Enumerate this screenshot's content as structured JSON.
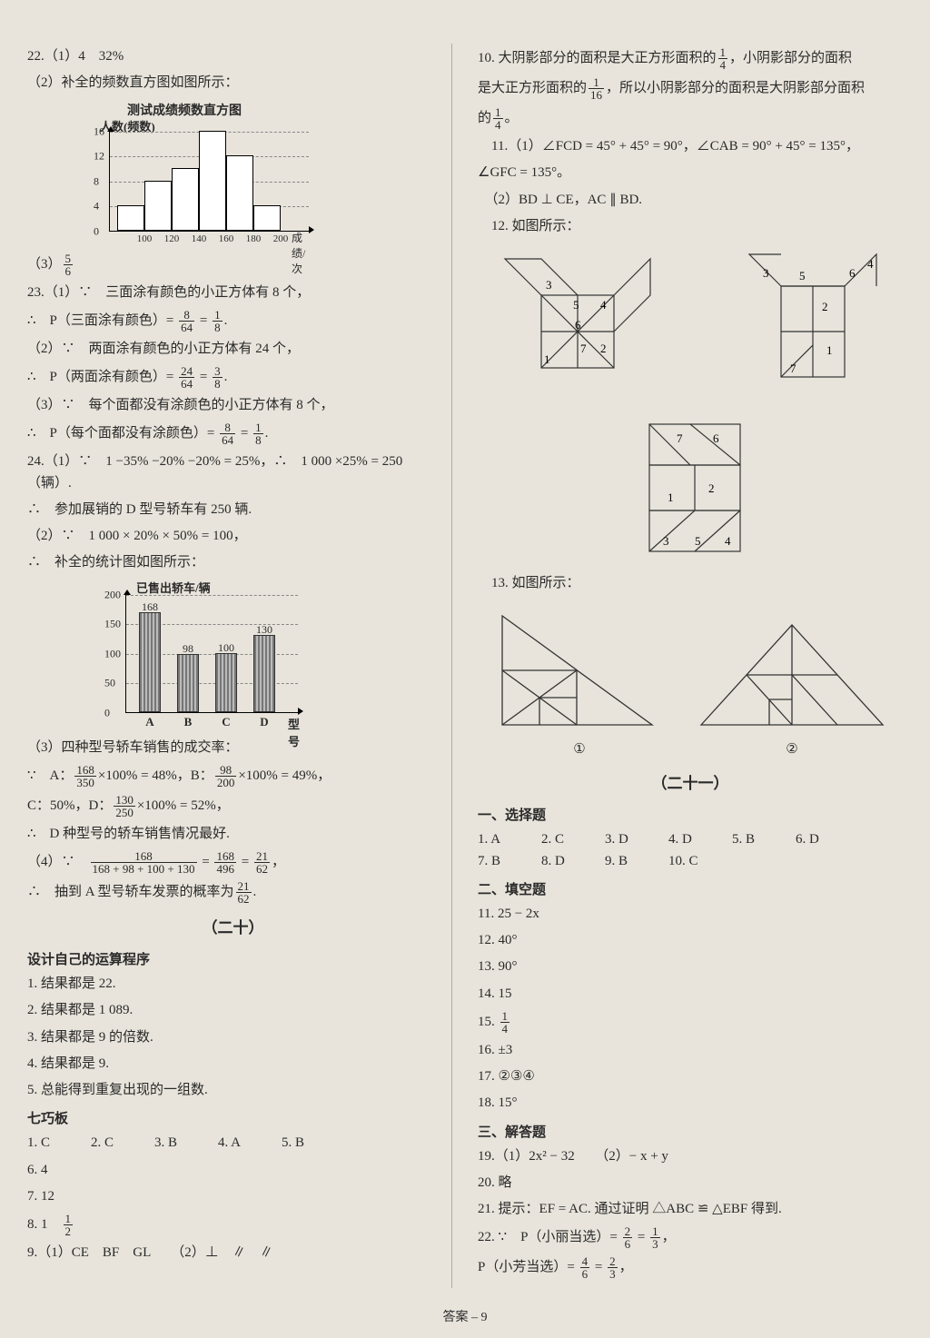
{
  "left": {
    "q22_1": "22.（1）4　32%",
    "q22_2": "（2）补全的频数直方图如图所示：",
    "hist": {
      "title": "测试成绩频数直方图",
      "ylabel": "人数(频数)",
      "yticks": [
        4,
        8,
        12,
        16
      ],
      "ymax": 16,
      "xstart": 100,
      "xstep": 20,
      "xcount": 6,
      "bars": [
        4,
        8,
        10,
        16,
        12,
        4
      ],
      "xunit": "成绩/次"
    },
    "q22_3_pre": "（3）",
    "q23_1a": "23.（1）∵　三面涂有颜色的小正方体有 8 个，",
    "q23_1b_pre": "∴　P（三面涂有颜色）= ",
    "q23_2a": "（2）∵　两面涂有颜色的小正方体有 24 个，",
    "q23_2b_pre": "∴　P（两面涂有颜色）= ",
    "q23_3a": "（3）∵　每个面都没有涂颜色的小正方体有 8 个，",
    "q23_3b_pre": "∴　P（每个面都没有涂颜色）= ",
    "q24_1a": "24.（1）∵　1 −35% −20% −20% = 25%，∴　1 000 ×25% = 250（辆）.",
    "q24_1b": "∴　参加展销的 D 型号轿车有 250 辆.",
    "q24_2a": "（2）∵　1 000 × 20% × 50% = 100，",
    "q24_2b": "∴　补全的统计图如图所示：",
    "bar": {
      "title": "已售出轿车/辆",
      "yticks": [
        0,
        50,
        100,
        150,
        200
      ],
      "ymax": 200,
      "cats": [
        "A",
        "B",
        "C",
        "D"
      ],
      "values": [
        168,
        98,
        100,
        130
      ],
      "xunit": "型号"
    },
    "q24_3a": "（3）四种型号轿车销售的成交率：",
    "q24_3b": "∵　A：",
    "q24_3b2": "×100% = 48%，B：",
    "q24_3b3": "×100% = 49%，",
    "q24_3c": "C：50%，D：",
    "q24_3c2": "×100% = 52%，",
    "q24_3d": "∴　D 种型号的轿车销售情况最好.",
    "q24_4a": "（4）∵　",
    "q24_4b": "∴　抽到 A 型号轿车发票的概率为",
    "s20_title": "（二十）",
    "s20_sub": "设计自己的运算程序",
    "s20_1": "1. 结果都是 22.",
    "s20_2": "2. 结果都是 1 089.",
    "s20_3": "3. 结果都是 9 的倍数.",
    "s20_4": "4. 结果都是 9.",
    "s20_5": "5. 总能得到重复出现的一组数.",
    "qqb": "七巧板",
    "qqb_row": [
      "1. C",
      "2. C",
      "3. B",
      "4. A",
      "5. B"
    ],
    "qqb_6": "6. 4",
    "qqb_7": "7. 12",
    "qqb_8": "8. 1　",
    "qqb_9": "9.（1）CE　BF　GL　　（2）⊥　∥　∥"
  },
  "right": {
    "r10a": "10. 大阴影部分的面积是大正方形面积的",
    "r10b": "，小阴影部分的面积",
    "r10c": "是大正方形面积的",
    "r10d": "，所以小阴影部分的面积是大阴影部分面积",
    "r10e": "的",
    "r10f": "。",
    "r11a": "　11.（1）∠FCD = 45° + 45° = 90°，∠CAB = 90° + 45° = 135°，",
    "r11b": "∠GFC = 135°。",
    "r11c": "　（2）BD ⊥ CE，AC ∥ BD.",
    "r12": "　12. 如图所示：",
    "r13": "　13. 如图所示：",
    "lbl1": "①",
    "lbl2": "②",
    "s21": "（二十一）",
    "mc_title": "一、选择题",
    "mc": [
      "1. A",
      "2. C",
      "3. D",
      "4. D",
      "5. B",
      "6. D",
      "7. B",
      "8. D",
      "9. B",
      "10. C"
    ],
    "fb_title": "二、填空题",
    "fb11": "11. 25 − 2x",
    "fb12": "12. 40°",
    "fb13": "13. 90°",
    "fb14": "14. 15",
    "fb15": "15. ",
    "fb16": "16. ±3",
    "fb17": "17. ②③④",
    "fb18": "18. 15°",
    "ans_title": "三、解答题",
    "a19": "19.（1）2x² − 32　　（2）− x + y",
    "a20": "20. 略",
    "a21": "21. 提示：EF = AC. 通过证明 △ABC ≌ △EBF 得到.",
    "a22a": "22. ∵　P（小丽当选）= ",
    "a22b": "P（小芳当选）= "
  },
  "footer": "答案 – 9",
  "colors": {
    "page_bg": "#e8e4db",
    "text": "#2a2a2a",
    "axis": "#000000",
    "grid": "#888888",
    "bar_fill": "#999999"
  }
}
